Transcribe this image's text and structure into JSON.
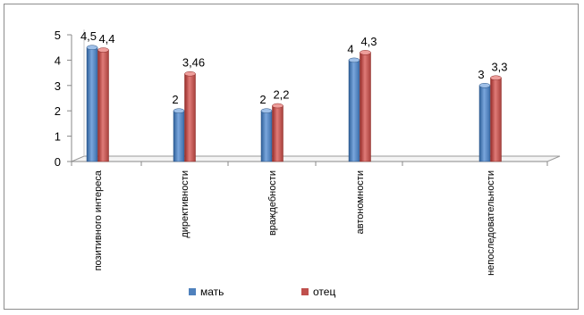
{
  "chart_data": {
    "type": "bar",
    "categories": [
      "позитивного интереса",
      "директивности",
      "враждебности",
      "автономности",
      "непоследовательности"
    ],
    "series": [
      {
        "name": "мать",
        "values": [
          4.5,
          2,
          2,
          4,
          3
        ],
        "labels": [
          "4,5",
          "2",
          "2",
          "4",
          "3"
        ],
        "color": "#4f81bd"
      },
      {
        "name": "отец",
        "values": [
          4.4,
          3.46,
          2.2,
          4.3,
          3.3
        ],
        "labels": [
          "4,4",
          "3,46",
          "2,2",
          "4,3",
          "3,3"
        ],
        "color": "#c0504d"
      }
    ],
    "yticks": [
      "0",
      "1",
      "2",
      "3",
      "4",
      "5"
    ],
    "ylim": [
      0,
      5
    ],
    "legend_position": "bottom"
  }
}
